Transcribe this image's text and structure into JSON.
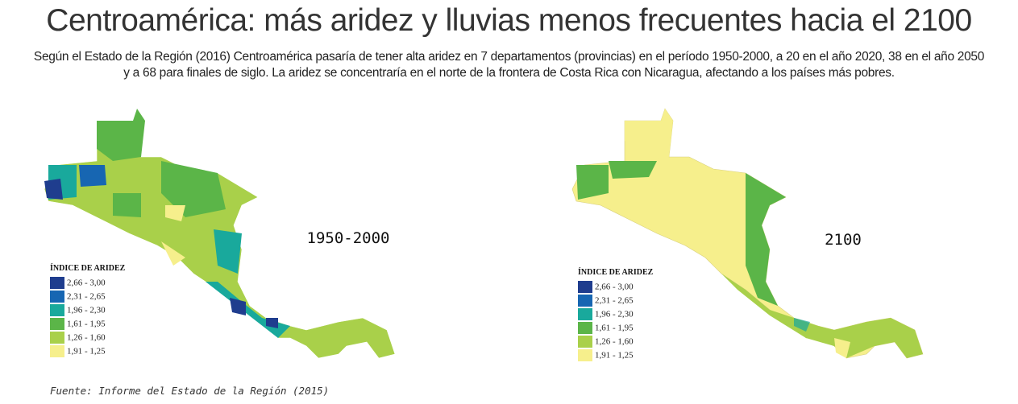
{
  "title": "Centroamérica: más aridez y lluvias menos frecuentes hacia el 2100",
  "subtitle": "Según el Estado de la Región (2016) Centroamérica pasaría de tener alta aridez en 7 departamentos (provincias) en el período 1950-2000, a 20 en el año 2020, 38 en el año 2050 y a 68 para finales de siglo. La aridez se concentraría en el norte de la frontera de Costa Rica con Nicaragua, afectando a los países más pobres.",
  "maps": [
    {
      "label": "1950-2000",
      "legend": {
        "title": "ÍNDICE DE ARIDEZ",
        "items": [
          {
            "label": "2,66 - 3,00",
            "color": "#1f3d8e"
          },
          {
            "label": "2,31 - 2,65",
            "color": "#1766b2"
          },
          {
            "label": "1,96 - 2,30",
            "color": "#19a99c"
          },
          {
            "label": "1,61 - 1,95",
            "color": "#5bb548"
          },
          {
            "label": "1,26 - 1,60",
            "color": "#a9d04a"
          },
          {
            "label": "1,91 - 1,25",
            "color": "#f6ef8c"
          }
        ]
      }
    },
    {
      "label": "2100",
      "legend": {
        "title": "ÍNDICE DE ARIDEZ",
        "items": [
          {
            "label": "2,66 - 3,00",
            "color": "#1f3d8e"
          },
          {
            "label": "2,31 - 2,65",
            "color": "#1766b2"
          },
          {
            "label": "1,96 - 2,30",
            "color": "#19a99c"
          },
          {
            "label": "1,61 - 1,95",
            "color": "#5bb548"
          },
          {
            "label": "1,26 - 1,60",
            "color": "#a9d04a"
          },
          {
            "label": "1,91 - 1,25",
            "color": "#f6ef8c"
          }
        ]
      }
    }
  ],
  "source": "Fuente: Informe del Estado de la Región (2015)"
}
